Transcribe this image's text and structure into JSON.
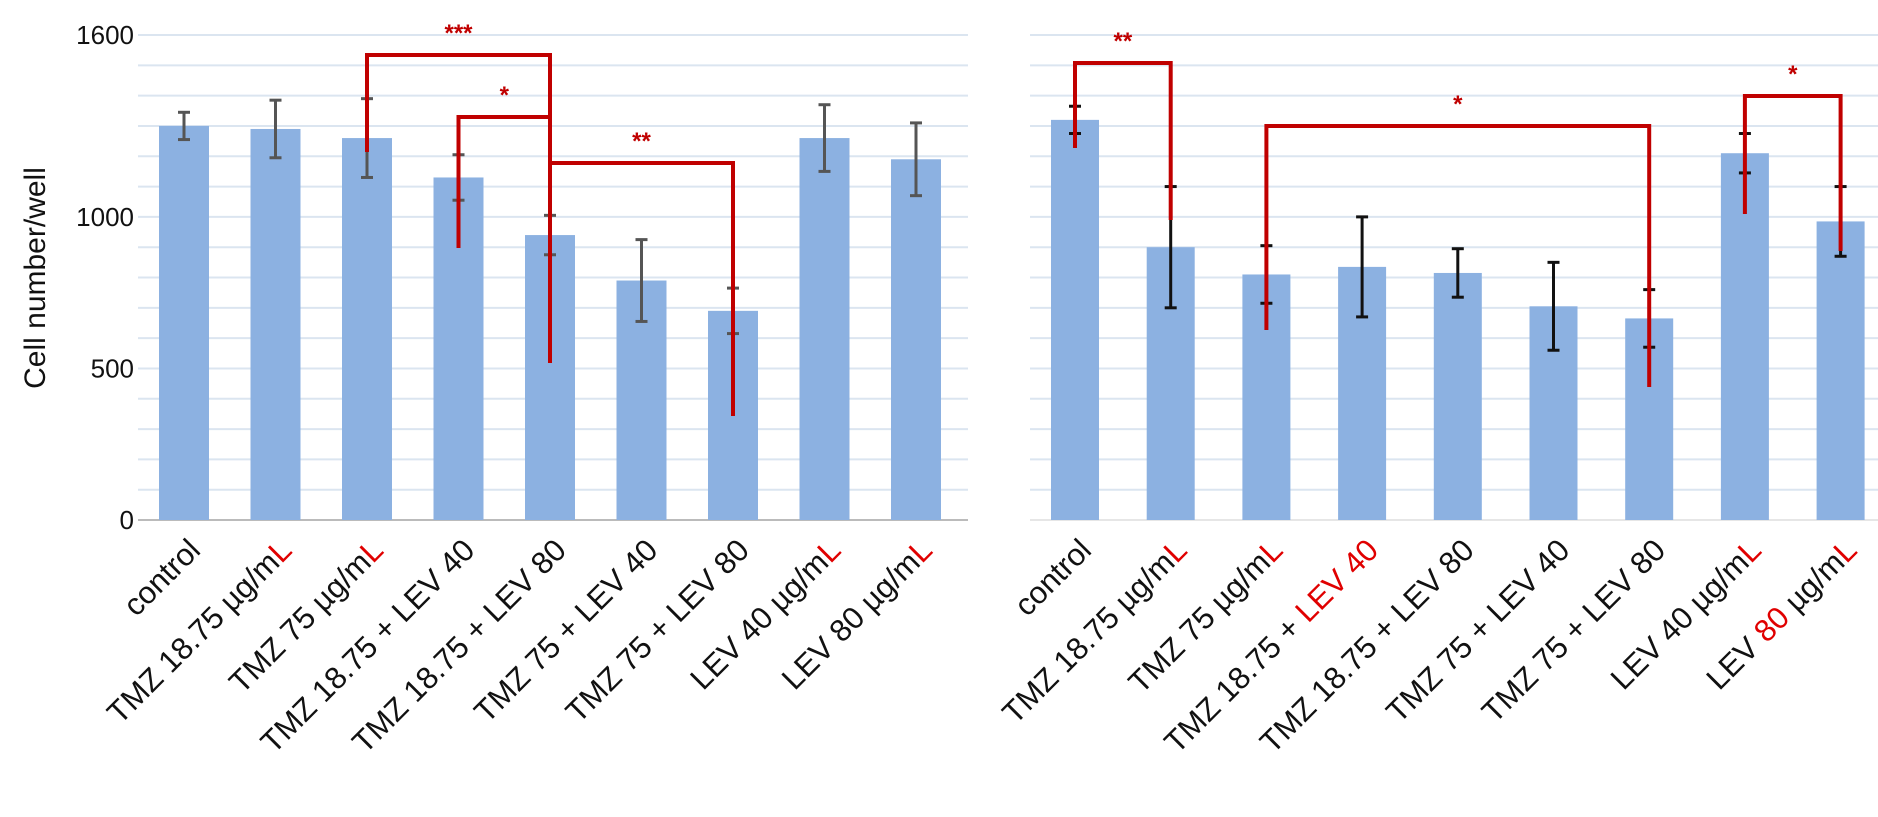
{
  "colors": {
    "bar": "#8cb1e1",
    "error_left": "#555555",
    "error_right": "#111111",
    "significance": "#c00000",
    "highlight": "#e00000",
    "grid": "#dbe5f0"
  },
  "chart_data": [
    {
      "type": "bar",
      "ylabel": "Cell number/well",
      "ylim": [
        0,
        1600
      ],
      "yticks": [
        0,
        500,
        1000,
        1600
      ],
      "grid": true,
      "categories": [
        {
          "label": "control",
          "parts": [
            {
              "t": "control",
              "red": false
            }
          ]
        },
        {
          "label": "TMZ 18.75 µg/mL",
          "parts": [
            {
              "t": "TMZ 18.75 µg/m",
              "red": false
            },
            {
              "t": "L",
              "red": true
            }
          ]
        },
        {
          "label": "TMZ 75 µg/mL",
          "parts": [
            {
              "t": "TMZ 75 µg/m",
              "red": false
            },
            {
              "t": "L",
              "red": true
            }
          ]
        },
        {
          "label": "TMZ 18.75 + LEV 40",
          "parts": [
            {
              "t": "TMZ 18.75 + LEV 40",
              "red": false
            }
          ]
        },
        {
          "label": "TMZ 18.75 + LEV 80",
          "parts": [
            {
              "t": "TMZ 18.75 + LEV 80",
              "red": false
            }
          ]
        },
        {
          "label": "TMZ 75 + LEV 40",
          "parts": [
            {
              "t": "TMZ 75 + LEV 40",
              "red": false
            }
          ]
        },
        {
          "label": "TMZ 75 + LEV 80",
          "parts": [
            {
              "t": "TMZ 75 + LEV 80",
              "red": false
            }
          ]
        },
        {
          "label": "LEV 40 µg/mL",
          "parts": [
            {
              "t": "LEV 40 µg/m",
              "red": false
            },
            {
              "t": "L",
              "red": true
            }
          ]
        },
        {
          "label": "LEV 80 µg/mL",
          "parts": [
            {
              "t": "LEV 80 µg/m",
              "red": false
            },
            {
              "t": "L",
              "red": true
            }
          ]
        }
      ],
      "values": [
        1300,
        1290,
        1260,
        1130,
        940,
        790,
        690,
        1260,
        1190
      ],
      "errors": [
        45,
        95,
        130,
        75,
        65,
        135,
        75,
        110,
        120
      ],
      "significance": [
        {
          "from": 2,
          "to": 4,
          "label": "***"
        },
        {
          "from": 3,
          "to": 4,
          "label": "*"
        },
        {
          "from": 4,
          "to": 6,
          "label": "**"
        }
      ]
    },
    {
      "type": "bar",
      "ylim": [
        0,
        1600
      ],
      "grid": true,
      "categories": [
        {
          "label": "control",
          "parts": [
            {
              "t": "control",
              "red": false
            }
          ]
        },
        {
          "label": "TMZ 18.75 µg/mL",
          "parts": [
            {
              "t": "TMZ 18.75 µg/m",
              "red": false
            },
            {
              "t": "L",
              "red": true
            }
          ]
        },
        {
          "label": "TMZ 75 µg/mL",
          "parts": [
            {
              "t": "TMZ 75 µg/m",
              "red": false
            },
            {
              "t": "L",
              "red": true
            }
          ]
        },
        {
          "label": "TMZ 18.75 + LEV 40",
          "parts": [
            {
              "t": "TMZ 18.75 + ",
              "red": false
            },
            {
              "t": "LEV 40",
              "red": true
            }
          ]
        },
        {
          "label": "TMZ 18.75 + LEV 80",
          "parts": [
            {
              "t": "TMZ 18.75 + LEV 80",
              "red": false
            }
          ]
        },
        {
          "label": "TMZ 75 + LEV 40",
          "parts": [
            {
              "t": "TMZ 75 + LEV 40",
              "red": false
            }
          ]
        },
        {
          "label": "TMZ 75 + LEV 80",
          "parts": [
            {
              "t": "TMZ 75 + LEV 80",
              "red": false
            }
          ]
        },
        {
          "label": "LEV 40 µg/mL",
          "parts": [
            {
              "t": "LEV 40 µg/m",
              "red": false
            },
            {
              "t": "L",
              "red": true
            }
          ]
        },
        {
          "label": "LEV 80 µg/mL",
          "parts": [
            {
              "t": "LEV ",
              "red": false
            },
            {
              "t": "80",
              "red": true
            },
            {
              "t": " µg/m",
              "red": false
            },
            {
              "t": "L",
              "red": true
            }
          ]
        }
      ],
      "values": [
        1320,
        900,
        810,
        835,
        815,
        705,
        665,
        1210,
        985
      ],
      "errors": [
        45,
        200,
        95,
        165,
        80,
        145,
        95,
        65,
        115
      ],
      "significance": [
        {
          "from": 0,
          "to": 1,
          "label": "**"
        },
        {
          "from": 2,
          "to": 6,
          "label": "*"
        },
        {
          "from": 7,
          "to": 8,
          "label": "*"
        }
      ]
    }
  ]
}
